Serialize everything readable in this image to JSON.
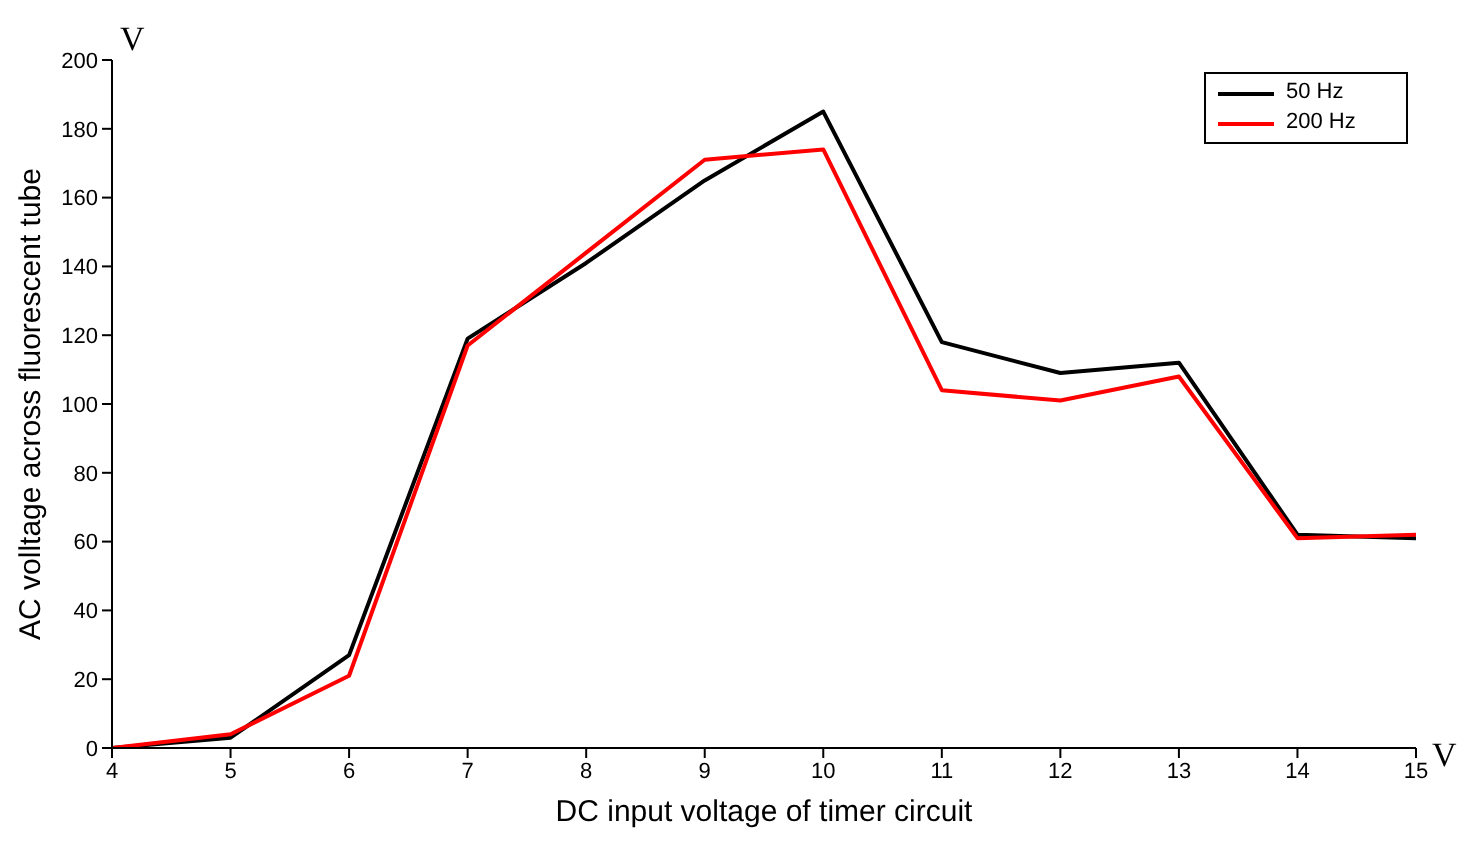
{
  "chart_data": {
    "type": "line",
    "xlabel": "DC input voltage of timer circuit",
    "ylabel": "AC volltage across fluorescent tube",
    "x": [
      4,
      5,
      6,
      7,
      8,
      9,
      10,
      11,
      12,
      13,
      14,
      15
    ],
    "series": [
      {
        "name": "50 Hz",
        "color": "#000000",
        "values": [
          0,
          3,
          27,
          119,
          141,
          165,
          185,
          118,
          109,
          112,
          62,
          61
        ]
      },
      {
        "name": "200 Hz",
        "color": "#ff0000",
        "values": [
          0,
          4,
          21,
          117,
          144,
          171,
          174,
          104,
          101,
          108,
          61,
          62
        ]
      }
    ],
    "xlim": [
      4,
      15
    ],
    "xticks": [
      4,
      5,
      6,
      7,
      8,
      9,
      10,
      11,
      12,
      13,
      14,
      15
    ],
    "ylim": [
      0,
      200
    ],
    "yticks": [
      0,
      20,
      40,
      60,
      80,
      100,
      120,
      140,
      160,
      180,
      200
    ],
    "annotations": [
      "V",
      "V"
    ],
    "legend": "top right",
    "grid": false,
    "marker": "none",
    "line_style": "solid"
  }
}
